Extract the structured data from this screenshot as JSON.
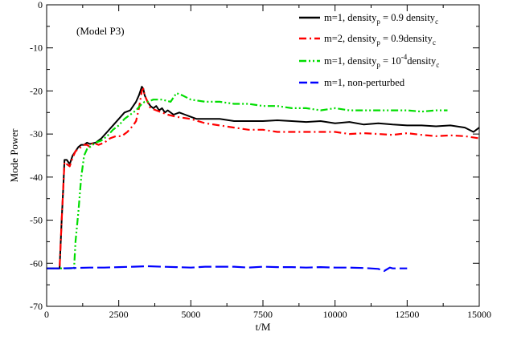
{
  "chart_data": {
    "type": "line",
    "xlabel": "t/M",
    "ylabel": "Mode Power",
    "xlim": [
      0,
      15000
    ],
    "ylim": [
      -70,
      0
    ],
    "xticks": [
      0,
      2500,
      5000,
      7500,
      10000,
      12500,
      15000
    ],
    "yticks": [
      0,
      -10,
      -20,
      -30,
      -40,
      -50,
      -60,
      -70
    ],
    "grid": false,
    "legend_position": "top-right",
    "annotation": "(Model P3)",
    "series": [
      {
        "legend": {
          "prefix": "m=1,  density",
          "sub1": "p",
          "mid": " = 0.9 density",
          "sub2": "c",
          "sup": ""
        },
        "color": "#000000",
        "style": "solid",
        "x": [
          0,
          450,
          520,
          580,
          620,
          700,
          800,
          900,
          1000,
          1100,
          1200,
          1300,
          1400,
          1500,
          1700,
          1900,
          2100,
          2300,
          2500,
          2700,
          2900,
          3100,
          3200,
          3300,
          3350,
          3400,
          3500,
          3600,
          3700,
          3800,
          3900,
          4000,
          4100,
          4200,
          4400,
          4600,
          4800,
          5000,
          5200,
          5500,
          6000,
          6500,
          7000,
          7500,
          8000,
          8500,
          9000,
          9500,
          10000,
          10500,
          11000,
          11500,
          12000,
          12500,
          13000,
          13500,
          14000,
          14500,
          14800,
          15000
        ],
        "y": [
          -61.2,
          -61.2,
          -50,
          -42,
          -36,
          -36,
          -37,
          -35,
          -34,
          -33,
          -32.5,
          -32.5,
          -32,
          -32.3,
          -32,
          -31,
          -29.5,
          -28,
          -26.5,
          -25,
          -24.5,
          -22.5,
          -21,
          -19,
          -19.5,
          -21,
          -22.5,
          -23.5,
          -24,
          -23.5,
          -24.5,
          -24,
          -25,
          -24.5,
          -25.5,
          -25,
          -25.5,
          -26,
          -26.5,
          -26.5,
          -26.5,
          -27,
          -27,
          -27,
          -26.8,
          -27,
          -27.2,
          -27,
          -27.5,
          -27.2,
          -27.8,
          -27.5,
          -27.8,
          -28,
          -28,
          -28.2,
          -28,
          -28.5,
          -29.5,
          -28.5
        ]
      },
      {
        "legend": {
          "prefix": "m=2,  density",
          "sub1": "p",
          "mid": " = 0.9density",
          "sub2": "c",
          "sup": ""
        },
        "color": "#ff0000",
        "style": "dashdot",
        "x": [
          0,
          450,
          520,
          580,
          620,
          700,
          800,
          900,
          1000,
          1100,
          1200,
          1300,
          1400,
          1500,
          1600,
          1800,
          2000,
          2200,
          2400,
          2600,
          2800,
          3000,
          3100,
          3200,
          3300,
          3350,
          3400,
          3500,
          3600,
          3800,
          4000,
          4200,
          4500,
          5000,
          5500,
          6000,
          6500,
          7000,
          7500,
          8000,
          8500,
          9000,
          9500,
          10000,
          10500,
          11000,
          11500,
          12000,
          12500,
          13000,
          13500,
          14000,
          14500,
          15000
        ],
        "y": [
          -61.2,
          -61.2,
          -50,
          -42,
          -36.5,
          -37,
          -37.5,
          -35.5,
          -34,
          -33.5,
          -33,
          -32.5,
          -32.5,
          -33,
          -32,
          -32.5,
          -32,
          -31,
          -30.5,
          -30.5,
          -29.5,
          -28,
          -27,
          -24,
          -20,
          -19.5,
          -21,
          -22.5,
          -24,
          -24.5,
          -25,
          -25.5,
          -26,
          -26.5,
          -27.5,
          -28,
          -28.5,
          -29,
          -29,
          -29.5,
          -29.5,
          -29.5,
          -29.5,
          -29.5,
          -30,
          -29.8,
          -30,
          -30.2,
          -29.8,
          -30.2,
          -30.5,
          -30.3,
          -30.5,
          -31
        ]
      },
      {
        "legend": {
          "prefix": "m=1,  density",
          "sub1": "p",
          "mid": " = 10",
          "sub2": "c",
          "sup": "-4",
          "suffix": "density"
        },
        "color": "#00dd00",
        "style": "dashdotdot",
        "x": [
          0,
          950,
          1000,
          1100,
          1200,
          1300,
          1400,
          1500,
          1700,
          1900,
          2100,
          2300,
          2500,
          2700,
          2900,
          3100,
          3300,
          3400,
          3500,
          3700,
          4000,
          4300,
          4500,
          4700,
          5000,
          5500,
          6000,
          6500,
          7000,
          7500,
          8000,
          8500,
          9000,
          9500,
          10000,
          10500,
          11000,
          11500,
          12000,
          12500,
          13000,
          13500,
          13900
        ],
        "y": [
          -61.2,
          -61.2,
          -55,
          -48,
          -40,
          -35,
          -33.5,
          -33,
          -32,
          -31.5,
          -30.5,
          -29,
          -28,
          -26.5,
          -25.5,
          -24.5,
          -23,
          -22.5,
          -22.5,
          -22,
          -22,
          -22.5,
          -20.5,
          -21,
          -22,
          -22.5,
          -22.5,
          -23,
          -23,
          -23.5,
          -23.5,
          -24,
          -24,
          -24.5,
          -24,
          -24.5,
          -24.5,
          -24.5,
          -24.5,
          -24.5,
          -24.8,
          -24.5,
          -24.5
        ]
      },
      {
        "legend": {
          "prefix": "m=1,  non-perturbed",
          "sub1": "",
          "mid": "",
          "sub2": "",
          "sup": ""
        },
        "color": "#0000ff",
        "style": "dashed",
        "x": [
          0,
          500,
          1000,
          1500,
          2000,
          2500,
          3000,
          3500,
          4000,
          4500,
          5000,
          5500,
          6000,
          6500,
          7000,
          7500,
          8000,
          8500,
          9000,
          9500,
          10000,
          10500,
          11000,
          11500,
          11700,
          11900,
          12000,
          12500
        ],
        "y": [
          -61.2,
          -61.2,
          -61.1,
          -61,
          -61,
          -60.9,
          -60.8,
          -60.7,
          -60.8,
          -60.9,
          -61,
          -60.8,
          -60.8,
          -60.8,
          -61,
          -60.8,
          -60.9,
          -60.9,
          -61,
          -60.9,
          -61,
          -61,
          -61.1,
          -61.3,
          -61.8,
          -61,
          -61.2,
          -61.2
        ]
      }
    ]
  }
}
